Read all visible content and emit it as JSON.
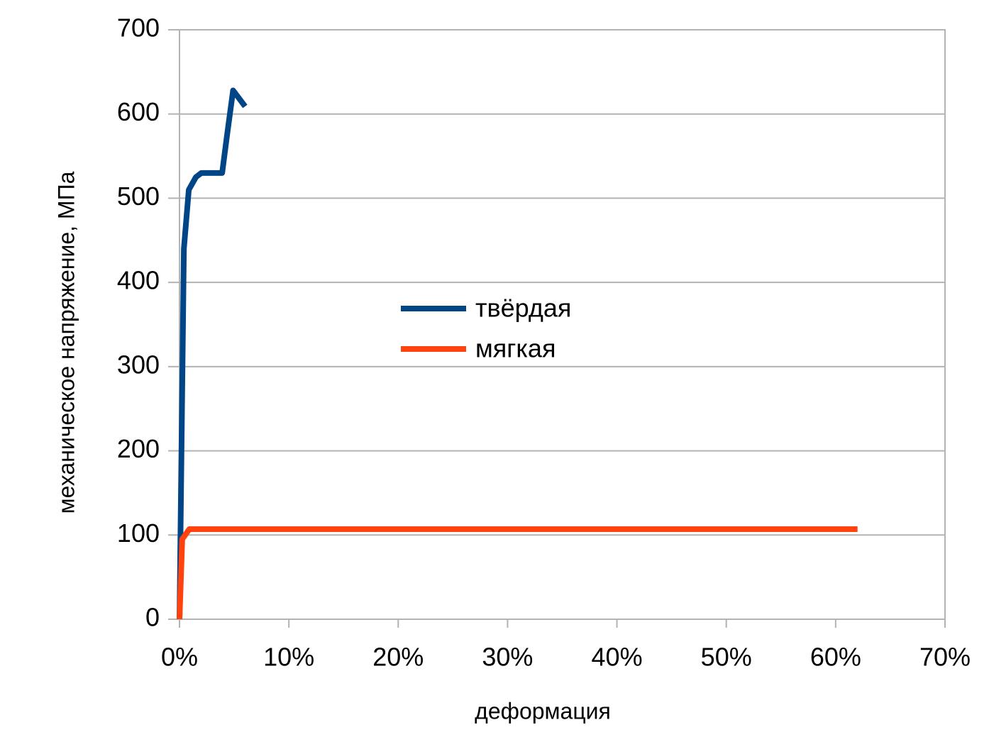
{
  "chart_data": {
    "type": "line",
    "x_label": "деформация",
    "y_label": "механическое напряжение, МПа",
    "series": [
      {
        "name": "твёрдая",
        "color": "#004586",
        "x": [
          0,
          0.4,
          0.85,
          1.5,
          2,
          3.9,
          4.35,
          4.9,
          6
        ],
        "values": [
          0,
          440,
          510,
          525,
          530,
          530,
          575,
          628,
          609
        ]
      },
      {
        "name": "мягкая",
        "color": "#ff420e",
        "x": [
          0,
          0.25,
          0.9,
          62
        ],
        "values": [
          0,
          95,
          107,
          107
        ]
      }
    ],
    "xlim": [
      0,
      70
    ],
    "xticks": [
      {
        "value": 0,
        "label": "0%"
      },
      {
        "value": 10,
        "label": "10%"
      },
      {
        "value": 20,
        "label": "20%"
      },
      {
        "value": 30,
        "label": "30%"
      },
      {
        "value": 40,
        "label": "40%"
      },
      {
        "value": 50,
        "label": "50%"
      },
      {
        "value": 60,
        "label": "60%"
      },
      {
        "value": 70,
        "label": "70%"
      }
    ],
    "ylim": [
      0,
      700
    ],
    "yticks": [
      0,
      100,
      200,
      300,
      400,
      500,
      600,
      700
    ],
    "grid": true,
    "legend_position": "center"
  }
}
